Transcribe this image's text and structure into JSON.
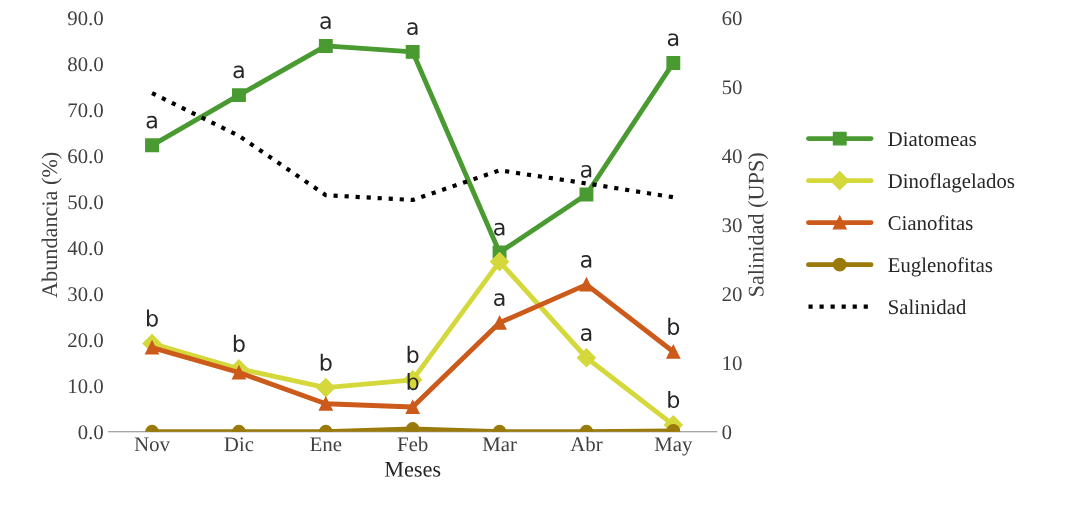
{
  "chart_data": {
    "type": "line",
    "xlabel": "Meses",
    "ylabel": "Abundancia (%)",
    "y2label": "Salinidad (UPS)",
    "categories": [
      "Nov",
      "Dic",
      "Ene",
      "Feb",
      "Mar",
      "Abr",
      "May"
    ],
    "series": [
      {
        "name": "Diatomeas",
        "color": "#4a9a32",
        "marker": "square",
        "line_style": "solid",
        "values": [
          62.3,
          73.2,
          83.9,
          82.6,
          39.0,
          51.6,
          80.2
        ]
      },
      {
        "name": "Dinoflagelados",
        "color": "#d4d83a",
        "marker": "diamond",
        "line_style": "solid",
        "values": [
          19.2,
          13.7,
          9.6,
          11.3,
          37.0,
          16.1,
          1.5
        ]
      },
      {
        "name": "Cianofitas",
        "color": "#cc5a1a",
        "marker": "triangle",
        "line_style": "solid",
        "values": [
          18.3,
          12.9,
          6.1,
          5.4,
          23.7,
          32.0,
          17.4
        ]
      },
      {
        "name": "Euglenofitas",
        "color": "#9a7a0a",
        "marker": "circle",
        "line_style": "solid",
        "values": [
          0,
          0,
          0,
          0.6,
          0,
          0,
          0.2
        ]
      },
      {
        "name": "Salinidad",
        "color": "#000000",
        "marker": "none",
        "line_style": "dotted",
        "axis": "y2",
        "values": [
          49.1,
          42.9,
          34.3,
          33.6,
          37.9,
          36.0,
          34.0
        ]
      }
    ],
    "ylim": [
      0,
      90
    ],
    "yticks": [
      {
        "value": 0,
        "label": "0.0"
      },
      {
        "value": 10,
        "label": "10.0"
      },
      {
        "value": 20,
        "label": "20.0"
      },
      {
        "value": 30,
        "label": "30.0"
      },
      {
        "value": 40,
        "label": "40.0"
      },
      {
        "value": 50,
        "label": "50.0"
      },
      {
        "value": 60,
        "label": "60.0"
      },
      {
        "value": 70,
        "label": "70.0"
      },
      {
        "value": 80,
        "label": "80.0"
      },
      {
        "value": 90,
        "label": "90.0"
      }
    ],
    "y2lim": [
      0,
      60
    ],
    "y2ticks": [
      0,
      10,
      20,
      30,
      40,
      50,
      60
    ],
    "grid": false,
    "legend": "right",
    "annotations": [
      {
        "text": "a",
        "x": "Nov",
        "y": 62.3
      },
      {
        "text": "a",
        "x": "Dic",
        "y": 73.2
      },
      {
        "text": "a",
        "x": "Ene",
        "y": 83.9
      },
      {
        "text": "a",
        "x": "Feb",
        "y": 82.6
      },
      {
        "text": "a",
        "x": "Mar",
        "y": 39.0
      },
      {
        "text": "a",
        "x": "Abr",
        "y": 51.6
      },
      {
        "text": "a",
        "x": "May",
        "y": 80.2
      },
      {
        "text": "b",
        "x": "Nov",
        "y": 19.2
      },
      {
        "text": "b",
        "x": "Dic",
        "y": 13.7
      },
      {
        "text": "b",
        "x": "Ene",
        "y": 9.6
      },
      {
        "text": "b",
        "x": "Feb",
        "y": 11.3
      },
      {
        "text": "b",
        "x": "Feb",
        "y": 5.4
      },
      {
        "text": "a",
        "x": "Mar",
        "y": 23.7
      },
      {
        "text": "a",
        "x": "Abr",
        "y": 32.0
      },
      {
        "text": "a",
        "x": "Abr",
        "y": 16.1
      },
      {
        "text": "b",
        "x": "May",
        "y": 17.4
      },
      {
        "text": "b",
        "x": "May",
        "y": 1.5
      }
    ]
  }
}
